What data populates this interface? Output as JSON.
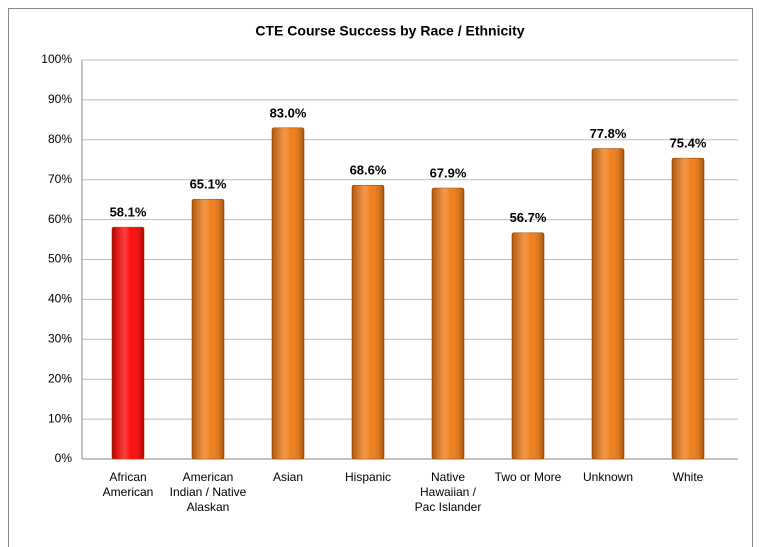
{
  "chart_data": {
    "type": "bar",
    "title": "CTE Course Success by Race / Ethnicity",
    "categories": [
      "African American",
      "American Indian / Native Alaskan",
      "Asian",
      "Hispanic",
      "Native Hawaiian / Pac Islander",
      "Two or More",
      "Unknown",
      "White"
    ],
    "values": [
      58.1,
      65.1,
      83.0,
      68.6,
      67.9,
      56.7,
      77.8,
      75.4
    ],
    "value_labels": [
      "58.1%",
      "65.1%",
      "83.0%",
      "68.6%",
      "67.9%",
      "56.7%",
      "77.8%",
      "75.4%"
    ],
    "colors": [
      "#ff0000",
      "#f07810",
      "#f07810",
      "#f07810",
      "#f07810",
      "#f07810",
      "#f07810",
      "#f07810"
    ],
    "ylim": [
      0,
      100
    ],
    "yticks": [
      {
        "value": 0,
        "label": "0%"
      },
      {
        "value": 10,
        "label": "10%"
      },
      {
        "value": 20,
        "label": "20%"
      },
      {
        "value": 30,
        "label": "30%"
      },
      {
        "value": 40,
        "label": "40%"
      },
      {
        "value": 50,
        "label": "50%"
      },
      {
        "value": 60,
        "label": "60%"
      },
      {
        "value": 70,
        "label": "70%"
      },
      {
        "value": 80,
        "label": "80%"
      },
      {
        "value": 90,
        "label": "90%"
      },
      {
        "value": 100,
        "label": "100%"
      }
    ],
    "grid": true
  }
}
